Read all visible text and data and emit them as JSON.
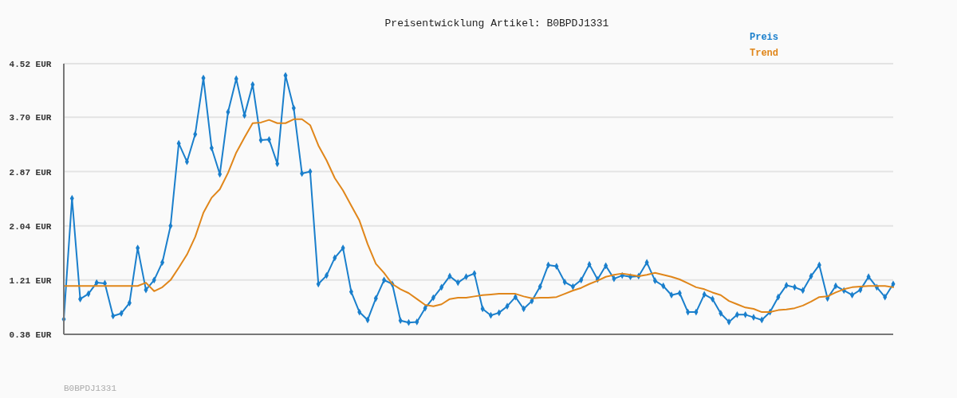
{
  "chart_data": {
    "type": "line",
    "title": "Preisentwicklung Artikel: B0BPDJ1331",
    "annotations": [
      "B0BPDJ1331"
    ],
    "categories": [
      null,
      null,
      null,
      null,
      null,
      null,
      null,
      null,
      null,
      null,
      null,
      null,
      null,
      null,
      null,
      null,
      null,
      null,
      null,
      null,
      null,
      null,
      null,
      null,
      null,
      null,
      null,
      null,
      null,
      null,
      null,
      null,
      null,
      null,
      null,
      null,
      null,
      null,
      null,
      null,
      null,
      null,
      null,
      null,
      null,
      null,
      null,
      null,
      null,
      null,
      null,
      null,
      null,
      null,
      null,
      null,
      null,
      null,
      null,
      null,
      null,
      null,
      null,
      null,
      null,
      null,
      null,
      null,
      null,
      null,
      null,
      null,
      null,
      null,
      null,
      null,
      null,
      null,
      null,
      null,
      null,
      null,
      null,
      null,
      null,
      null,
      null,
      null,
      null,
      null,
      null,
      null,
      null,
      null,
      null,
      null,
      null,
      null,
      null,
      null,
      null,
      null
    ],
    "series": [
      {
        "name": "Preis",
        "color": "#1a7fcc",
        "marker": "diamond",
        "values": [
          0.61,
          2.46,
          0.92,
          1.0,
          1.17,
          1.16,
          0.66,
          0.7,
          0.86,
          1.7,
          1.06,
          1.21,
          1.48,
          2.04,
          3.3,
          3.02,
          3.44,
          4.3,
          3.23,
          2.83,
          3.78,
          4.29,
          3.73,
          4.2,
          3.35,
          3.36,
          2.99,
          4.34,
          3.84,
          2.84,
          2.87,
          1.15,
          1.28,
          1.55,
          1.7,
          1.03,
          0.72,
          0.6,
          0.93,
          1.21,
          1.15,
          0.59,
          0.56,
          0.57,
          0.78,
          0.94,
          1.1,
          1.27,
          1.17,
          1.26,
          1.31,
          0.77,
          0.67,
          0.71,
          0.81,
          0.95,
          0.77,
          0.89,
          1.11,
          1.44,
          1.42,
          1.18,
          1.11,
          1.21,
          1.45,
          1.22,
          1.43,
          1.23,
          1.28,
          1.26,
          1.27,
          1.48,
          1.2,
          1.12,
          0.98,
          1.01,
          0.72,
          0.72,
          0.99,
          0.92,
          0.7,
          0.57,
          0.68,
          0.68,
          0.64,
          0.6,
          0.72,
          0.95,
          1.13,
          1.1,
          1.05,
          1.27,
          1.44,
          0.93,
          1.12,
          1.05,
          0.98,
          1.06,
          1.26,
          1.1,
          0.95,
          1.15
        ]
      },
      {
        "name": "Trend",
        "color": "#e0861a",
        "marker": "none",
        "values": [
          1.12,
          1.12,
          1.12,
          1.12,
          1.12,
          1.12,
          1.12,
          1.12,
          1.12,
          1.12,
          1.17,
          1.04,
          1.1,
          1.21,
          1.4,
          1.6,
          1.87,
          2.24,
          2.47,
          2.6,
          2.85,
          3.16,
          3.39,
          3.61,
          3.62,
          3.66,
          3.61,
          3.61,
          3.67,
          3.67,
          3.58,
          3.27,
          3.04,
          2.77,
          2.58,
          2.35,
          2.12,
          1.76,
          1.46,
          1.32,
          1.15,
          1.07,
          1.01,
          0.92,
          0.83,
          0.81,
          0.84,
          0.92,
          0.94,
          0.94,
          0.96,
          0.98,
          0.99,
          1.0,
          1.0,
          1.0,
          0.96,
          0.93,
          0.94,
          0.94,
          0.95,
          1.0,
          1.05,
          1.09,
          1.15,
          1.2,
          1.26,
          1.29,
          1.31,
          1.29,
          1.27,
          1.29,
          1.32,
          1.29,
          1.26,
          1.22,
          1.16,
          1.1,
          1.07,
          1.02,
          0.98,
          0.89,
          0.84,
          0.79,
          0.77,
          0.72,
          0.72,
          0.75,
          0.76,
          0.78,
          0.82,
          0.88,
          0.95,
          0.96,
          1.02,
          1.07,
          1.1,
          1.11,
          1.12,
          1.12,
          1.12,
          1.1
        ]
      }
    ],
    "ylim": [
      0.38,
      4.52
    ],
    "yticks": [
      {
        "value": 0.38,
        "label": "0.38 EUR"
      },
      {
        "value": 1.21,
        "label": "1.21 EUR"
      },
      {
        "value": 2.04,
        "label": "2.04 EUR"
      },
      {
        "value": 2.87,
        "label": "2.87 EUR"
      },
      {
        "value": 3.7,
        "label": "3.70 EUR"
      },
      {
        "value": 4.52,
        "label": "4.52 EUR"
      }
    ],
    "grid": "y",
    "legend": "top right"
  }
}
